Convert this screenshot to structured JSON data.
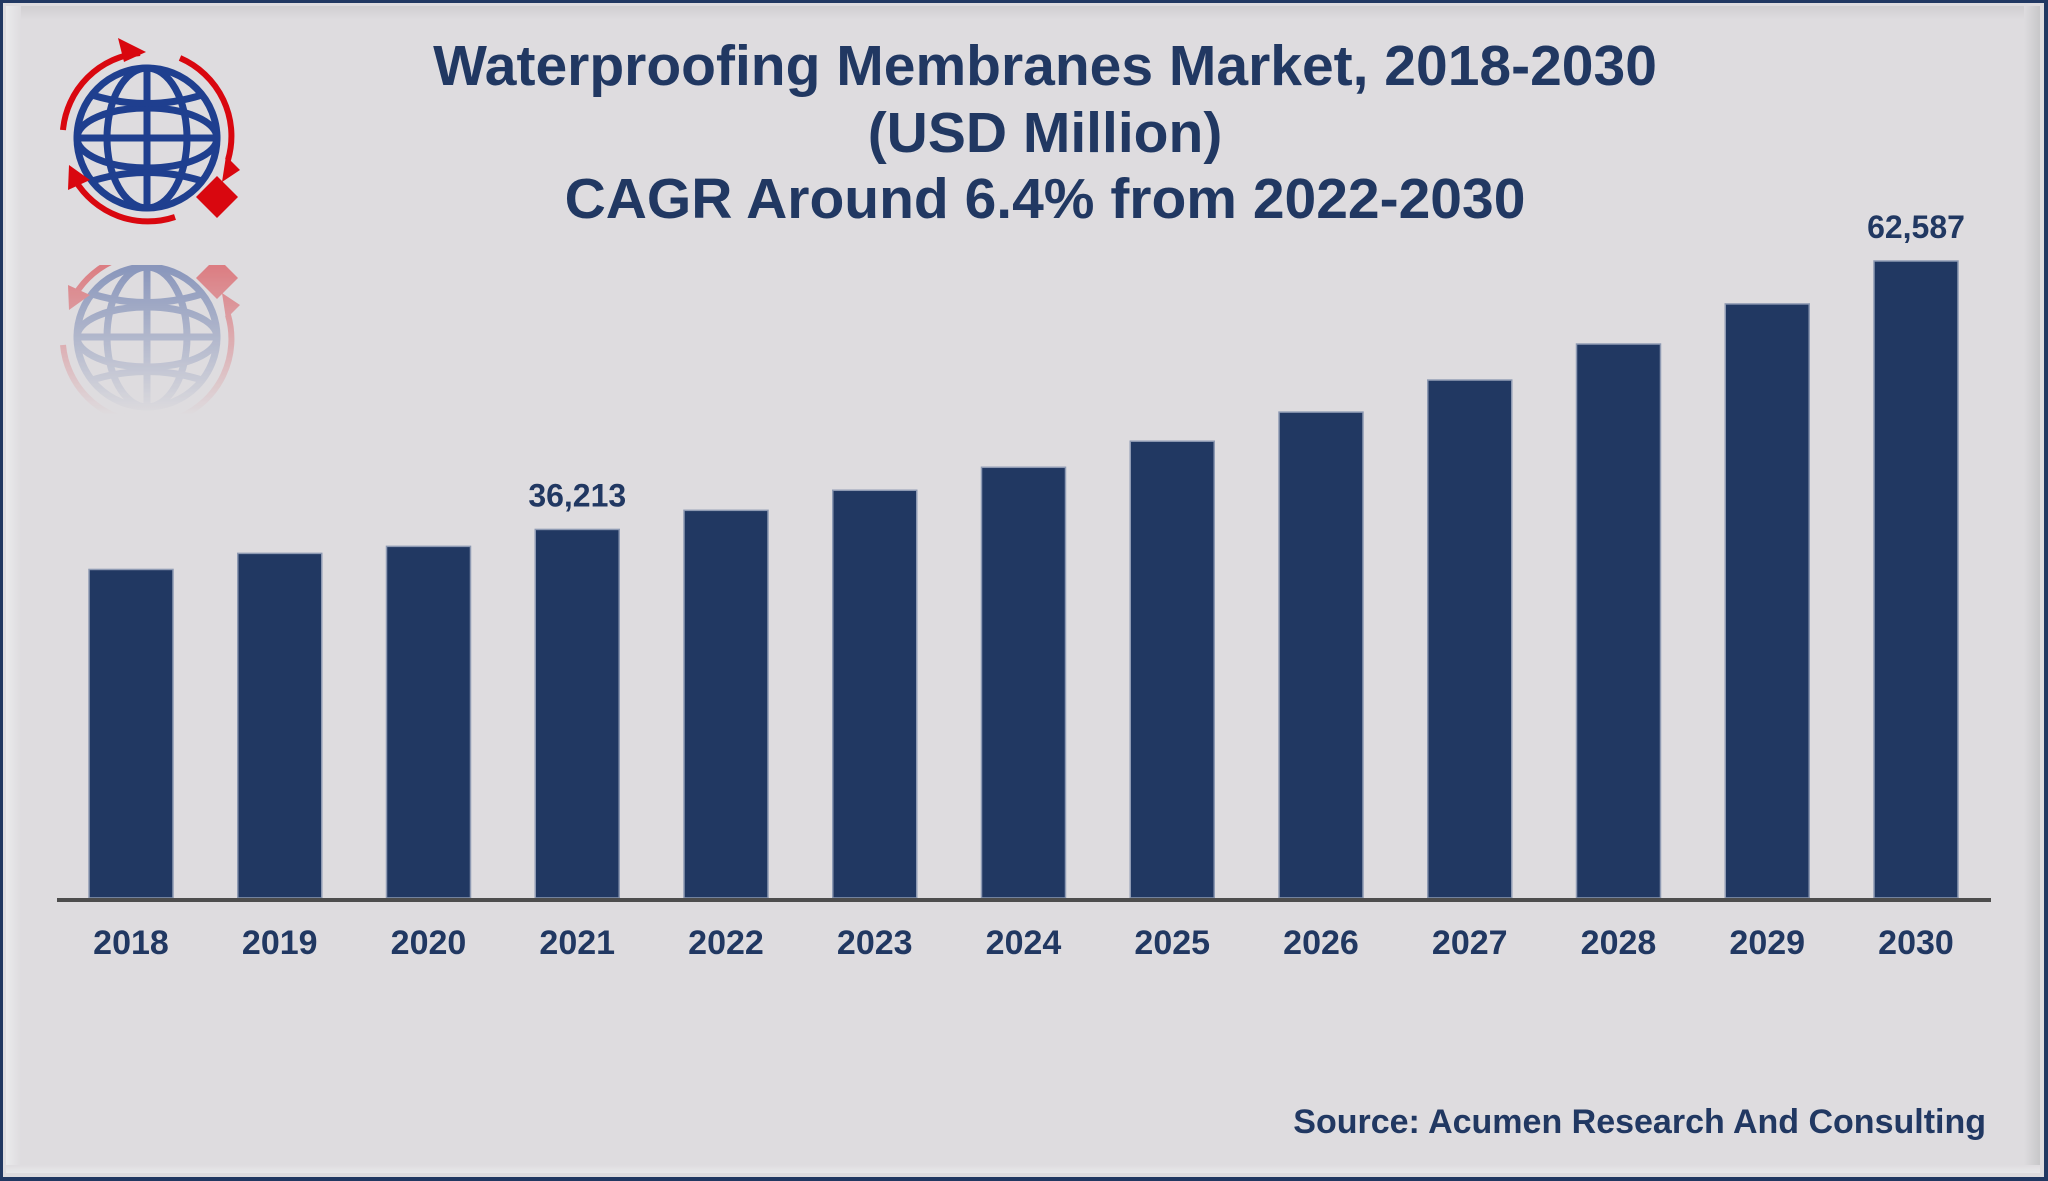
{
  "chart_data": {
    "type": "bar",
    "title": "Waterproofing Membranes Market, 2018-2030",
    "subtitle_lines": [
      "(USD Million)",
      "CAGR Around 6.4% from 2022-2030"
    ],
    "categories": [
      "2018",
      "2019",
      "2020",
      "2021",
      "2022",
      "2023",
      "2024",
      "2025",
      "2026",
      "2027",
      "2028",
      "2029",
      "2030"
    ],
    "values": [
      32280,
      33860,
      34550,
      36213,
      38090,
      40060,
      42320,
      44880,
      47740,
      50890,
      54430,
      58370,
      62587
    ],
    "data_labels": [
      {
        "category": "2021",
        "text": "36,213"
      },
      {
        "category": "2030",
        "text": "62,587"
      }
    ],
    "xlabel": "",
    "ylabel": "",
    "ylim": [
      0,
      62587
    ],
    "grid": false,
    "legend": "none",
    "source": "Source: Acumen Research And Consulting"
  },
  "colors": {
    "bar": "#213862",
    "text": "#213862",
    "axis": "#4d4d4d",
    "logo_globe": "#1f3f8f",
    "logo_accent": "#d9070f"
  },
  "logo": {
    "icon": "globe-with-circular-arrows-icon"
  }
}
